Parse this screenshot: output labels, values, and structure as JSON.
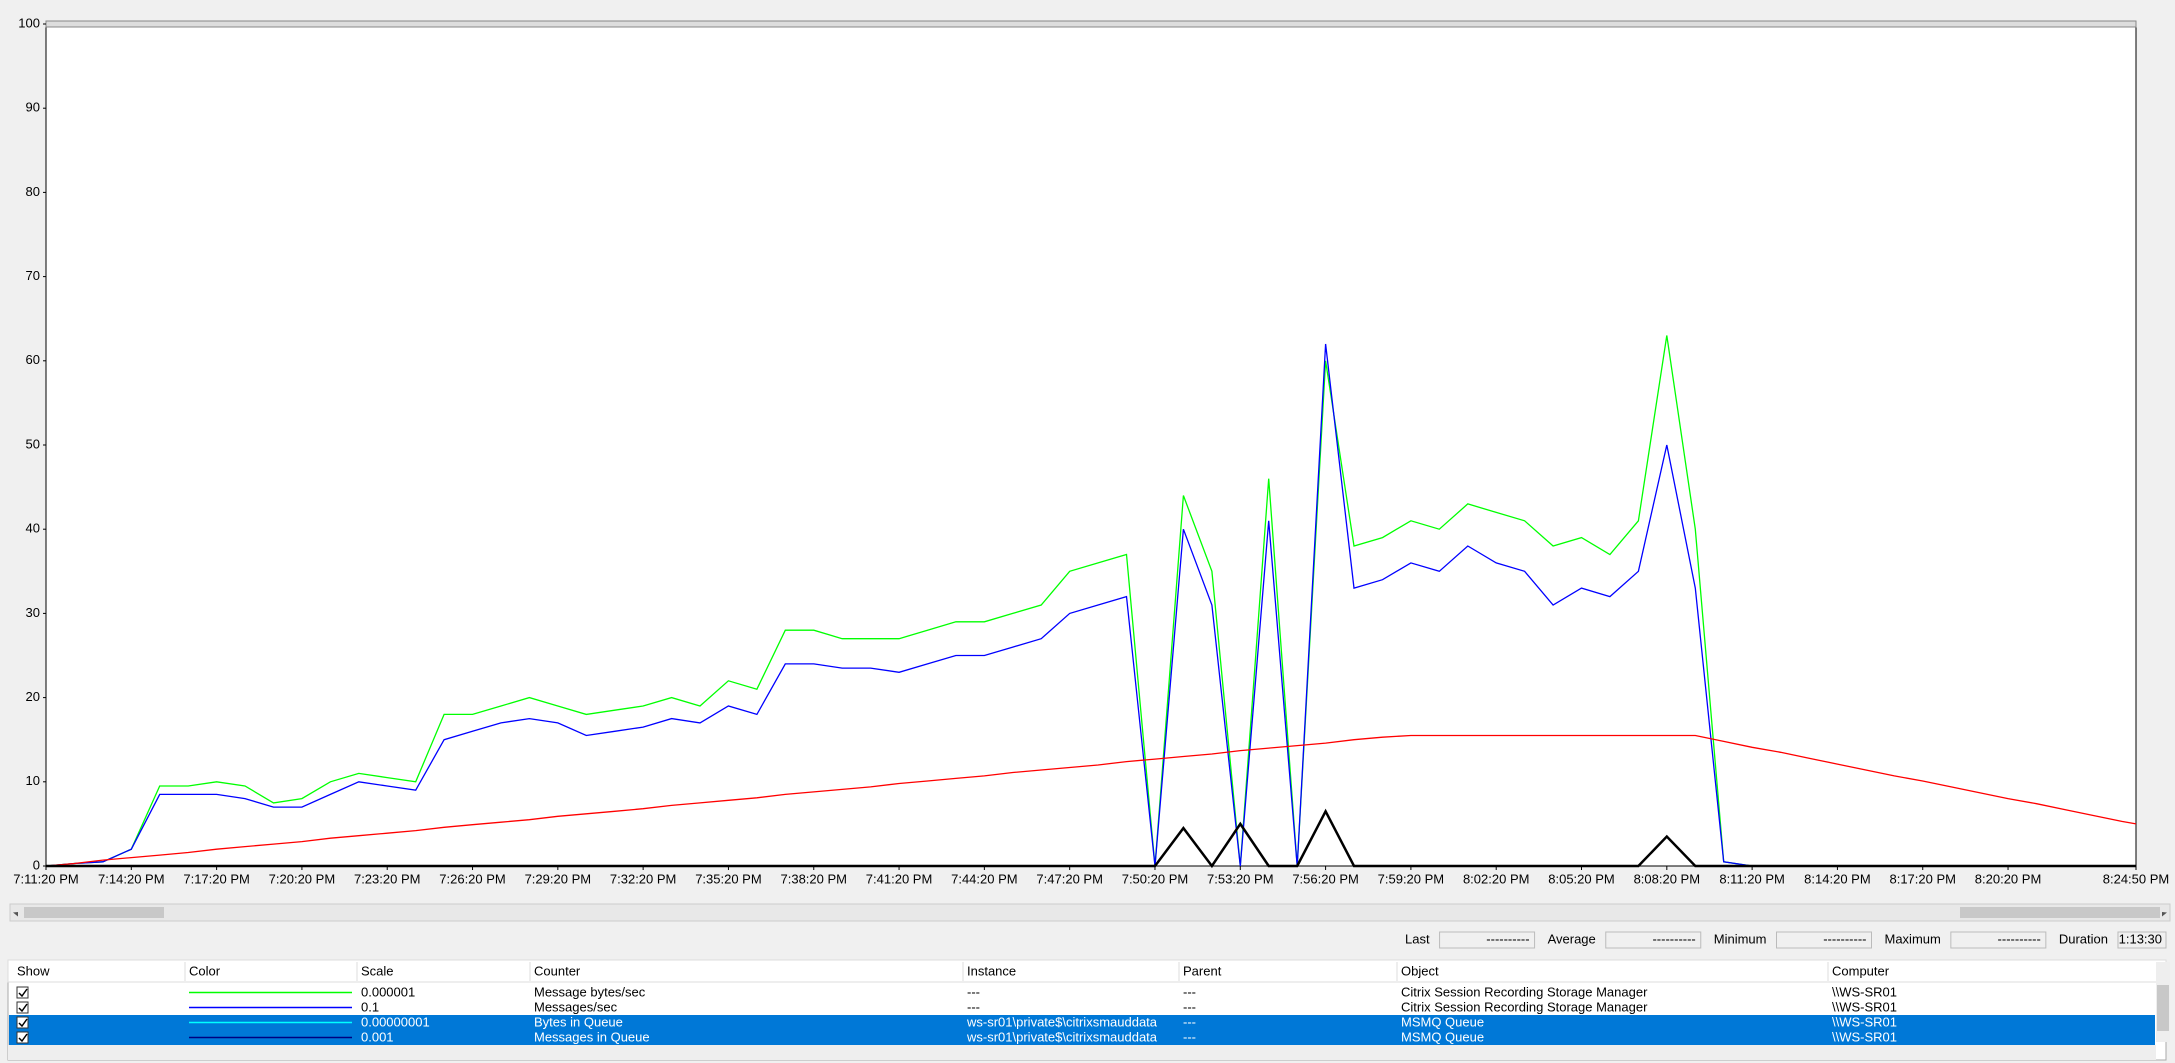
{
  "chart_data": {
    "type": "line",
    "x": [
      "7:11:20 PM",
      "7:12:20 PM",
      "7:13:20 PM",
      "7:14:20 PM",
      "7:15:20 PM",
      "7:16:20 PM",
      "7:17:20 PM",
      "7:18:20 PM",
      "7:19:20 PM",
      "7:20:20 PM",
      "7:21:20 PM",
      "7:22:20 PM",
      "7:23:20 PM",
      "7:24:20 PM",
      "7:25:20 PM",
      "7:26:20 PM",
      "7:27:20 PM",
      "7:28:20 PM",
      "7:29:20 PM",
      "7:30:20 PM",
      "7:31:20 PM",
      "7:32:20 PM",
      "7:33:20 PM",
      "7:34:20 PM",
      "7:35:20 PM",
      "7:36:20 PM",
      "7:37:20 PM",
      "7:38:20 PM",
      "7:39:20 PM",
      "7:40:20 PM",
      "7:41:20 PM",
      "7:42:20 PM",
      "7:43:20 PM",
      "7:44:20 PM",
      "7:45:20 PM",
      "7:46:20 PM",
      "7:47:20 PM",
      "7:48:20 PM",
      "7:49:20 PM",
      "7:50:20 PM",
      "7:51:20 PM",
      "7:52:20 PM",
      "7:53:20 PM",
      "7:54:20 PM",
      "7:55:20 PM",
      "7:56:20 PM",
      "7:57:20 PM",
      "7:58:20 PM",
      "7:59:20 PM",
      "8:00:20 PM",
      "8:01:20 PM",
      "8:02:20 PM",
      "8:03:20 PM",
      "8:04:20 PM",
      "8:05:20 PM",
      "8:06:20 PM",
      "8:07:20 PM",
      "8:08:20 PM",
      "8:09:20 PM",
      "8:10:20 PM",
      "8:11:20 PM",
      "8:12:20 PM",
      "8:13:20 PM",
      "8:14:20 PM",
      "8:15:20 PM",
      "8:16:20 PM",
      "8:17:20 PM",
      "8:18:20 PM",
      "8:19:20 PM",
      "8:20:20 PM",
      "8:21:20 PM",
      "8:22:20 PM",
      "8:23:20 PM",
      "8:24:20 PM",
      "8:24:50 PM"
    ],
    "series": [
      {
        "color": "#00ff00",
        "values": [
          0,
          0.3,
          0.5,
          2,
          9.5,
          9.5,
          10,
          9.5,
          7.5,
          8,
          10,
          11,
          10.5,
          10,
          18,
          18,
          19,
          20,
          19,
          18,
          18.5,
          19,
          20,
          19,
          22,
          21,
          28,
          28,
          27,
          27,
          27,
          28,
          29,
          29,
          30,
          31,
          35,
          36,
          37,
          0,
          44,
          35,
          0,
          46,
          0,
          60,
          38,
          39,
          41,
          40,
          43,
          42,
          41,
          38,
          39,
          37,
          41,
          63,
          40,
          0.5,
          0,
          0,
          0,
          0,
          0,
          0,
          0,
          0,
          0,
          0,
          0,
          0,
          0,
          0,
          0
        ]
      },
      {
        "color": "#0000ff",
        "values": [
          0,
          0.3,
          0.5,
          2,
          8.5,
          8.5,
          8.5,
          8,
          7,
          7,
          8.5,
          10,
          9.5,
          9,
          15,
          16,
          17,
          17.5,
          17,
          15.5,
          16,
          16.5,
          17.5,
          17,
          19,
          18,
          24,
          24,
          23.5,
          23.5,
          23,
          24,
          25,
          25,
          26,
          27,
          30,
          31,
          32,
          0,
          40,
          31,
          0,
          41,
          0,
          62,
          33,
          34,
          36,
          35,
          38,
          36,
          35,
          31,
          33,
          32,
          35,
          50,
          33,
          0.5,
          0,
          0,
          0,
          0,
          0,
          0,
          0,
          0,
          0,
          0,
          0,
          0,
          0,
          0,
          0
        ]
      },
      {
        "color": "#ff0000",
        "values": [
          0,
          0.3,
          0.7,
          1,
          1.3,
          1.6,
          2,
          2.3,
          2.6,
          2.9,
          3.3,
          3.6,
          3.9,
          4.2,
          4.6,
          4.9,
          5.2,
          5.5,
          5.9,
          6.2,
          6.5,
          6.8,
          7.2,
          7.5,
          7.8,
          8.1,
          8.5,
          8.8,
          9.1,
          9.4,
          9.8,
          10.1,
          10.4,
          10.7,
          11.1,
          11.4,
          11.7,
          12,
          12.4,
          12.7,
          13,
          13.3,
          13.7,
          14,
          14.3,
          14.6,
          15,
          15.3,
          15.5,
          15.5,
          15.5,
          15.5,
          15.5,
          15.5,
          15.5,
          15.5,
          15.5,
          15.5,
          15.5,
          14.8,
          14.1,
          13.5,
          12.8,
          12.1,
          11.4,
          10.7,
          10.1,
          9.4,
          8.7,
          8,
          7.4,
          6.7,
          6,
          5.3,
          5
        ]
      },
      {
        "color": "#000000",
        "values": [
          0,
          0,
          0,
          0,
          0,
          0,
          0,
          0,
          0,
          0,
          0,
          0,
          0,
          0,
          0,
          0,
          0,
          0,
          0,
          0,
          0,
          0,
          0,
          0,
          0,
          0,
          0,
          0,
          0,
          0,
          0,
          0,
          0,
          0,
          0,
          0,
          0,
          0,
          0,
          0,
          4.5,
          0,
          5,
          0,
          0,
          6.5,
          0,
          0,
          0,
          0,
          0,
          0,
          0,
          0,
          0,
          0,
          0,
          3.5,
          0,
          0,
          0,
          0,
          0,
          0,
          0,
          0,
          0,
          0,
          0,
          0,
          0,
          0,
          0,
          0,
          0
        ]
      }
    ],
    "ylim": [
      0,
      100
    ],
    "yticks": [
      0,
      10,
      20,
      30,
      40,
      50,
      60,
      70,
      80,
      90,
      100
    ],
    "xticks": [
      "7:11:20 PM",
      "7:14:20 PM",
      "7:17:20 PM",
      "7:20:20 PM",
      "7:23:20 PM",
      "7:26:20 PM",
      "7:29:20 PM",
      "7:32:20 PM",
      "7:35:20 PM",
      "7:38:20 PM",
      "7:41:20 PM",
      "7:44:20 PM",
      "7:47:20 PM",
      "7:50:20 PM",
      "7:53:20 PM",
      "7:56:20 PM",
      "7:59:20 PM",
      "8:02:20 PM",
      "8:05:20 PM",
      "8:08:20 PM",
      "8:11:20 PM",
      "8:14:20 PM",
      "8:17:20 PM",
      "8:20:20 PM",
      "8:24:50 PM"
    ]
  },
  "stats": [
    {
      "label": "Last",
      "value": "----------"
    },
    {
      "label": "Average",
      "value": "----------"
    },
    {
      "label": "Minimum",
      "value": "----------"
    },
    {
      "label": "Maximum",
      "value": "----------"
    },
    {
      "label": "Duration",
      "value": "1:13:30"
    }
  ],
  "table": {
    "columns": [
      "Show",
      "Color",
      "Scale",
      "Counter",
      "Instance",
      "Parent",
      "Object",
      "Computer"
    ],
    "rows": [
      {
        "color": "#00ff00",
        "selected": false,
        "scale": "0.000001",
        "counter": "Message bytes/sec",
        "instance": "---",
        "parent": "---",
        "object": "Citrix Session Recording Storage Manager",
        "computer": "\\\\WS-SR01"
      },
      {
        "color": "#0000ff",
        "selected": false,
        "scale": "0.1",
        "counter": "Messages/sec",
        "instance": "---",
        "parent": "---",
        "object": "Citrix Session Recording Storage Manager",
        "computer": "\\\\WS-SR01"
      },
      {
        "color": "#00ffff",
        "selected": true,
        "scale": "0.00000001",
        "counter": "Bytes in Queue",
        "instance": "ws-sr01\\private$\\citrixsmauddata",
        "parent": "---",
        "object": "MSMQ Queue",
        "computer": "\\\\WS-SR01"
      },
      {
        "color": "#000080",
        "selected": true,
        "scale": "0.001",
        "counter": "Messages in Queue",
        "instance": "ws-sr01\\private$\\citrixsmauddata",
        "parent": "---",
        "object": "MSMQ Queue",
        "computer": "\\\\WS-SR01"
      }
    ]
  }
}
